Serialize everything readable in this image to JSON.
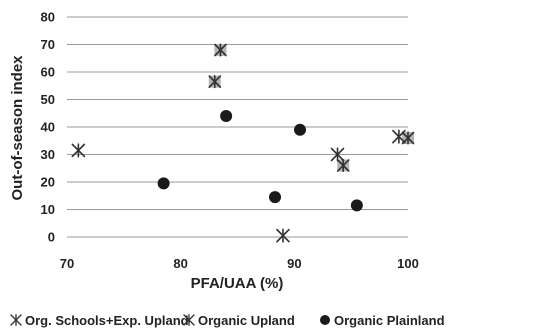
{
  "chart_data": {
    "type": "scatter",
    "title": "",
    "xlabel": "PFA/UAA (%)",
    "ylabel": "Out-of-season index",
    "xlim": [
      70,
      100
    ],
    "ylim": [
      0,
      80
    ],
    "xticks": [
      "70",
      "80",
      "90",
      "100"
    ],
    "yticks": [
      "0",
      "10",
      "20",
      "30",
      "40",
      "50",
      "60",
      "70",
      "80"
    ],
    "grid": "horizontal",
    "legend_position": "bottom",
    "series": [
      {
        "name": "Org. Schools+Exp. Upland",
        "marker": "boxed-asterisk",
        "color": "#333333",
        "x": [
          83.5,
          83.0,
          94.3,
          100.0
        ],
        "y": [
          68,
          56.5,
          26,
          36
        ]
      },
      {
        "name": "Organic Upland",
        "marker": "asterisk",
        "color": "#333333",
        "x": [
          71.0,
          93.8,
          99.2,
          89.0
        ],
        "y": [
          31.5,
          30,
          36.5,
          0.5
        ]
      },
      {
        "name": "Organic Plainland",
        "marker": "circle",
        "color": "#1a1a1a",
        "x": [
          84.0,
          90.5,
          78.5,
          88.3,
          95.5
        ],
        "y": [
          44,
          39,
          19.5,
          14.5,
          11.5
        ]
      }
    ]
  }
}
